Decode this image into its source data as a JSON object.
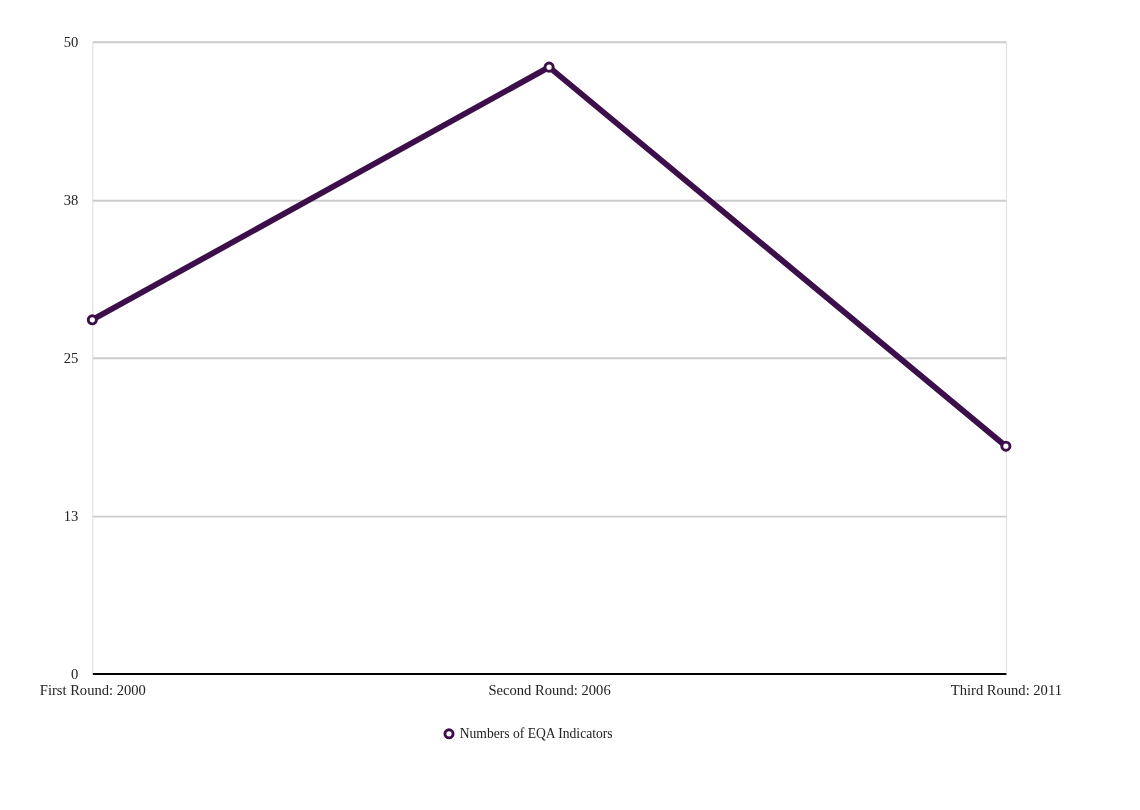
{
  "chart_data": {
    "type": "line",
    "categories": [
      "First Round: 2000",
      "Second Round: 2006",
      "Third Round: 2011"
    ],
    "series": [
      {
        "name": "Numbers of EQA Indicators",
        "color": "#3d0f4a",
        "values": [
          28,
          48,
          18
        ]
      }
    ],
    "ylim": [
      0,
      50
    ],
    "yticks": [
      0,
      {
        "value": 12.5,
        "label": "13"
      },
      25,
      {
        "value": 37.5,
        "label": "38"
      },
      50
    ],
    "grid": "y",
    "legend": "bottom",
    "marker": "circle",
    "line_style": "solid"
  }
}
